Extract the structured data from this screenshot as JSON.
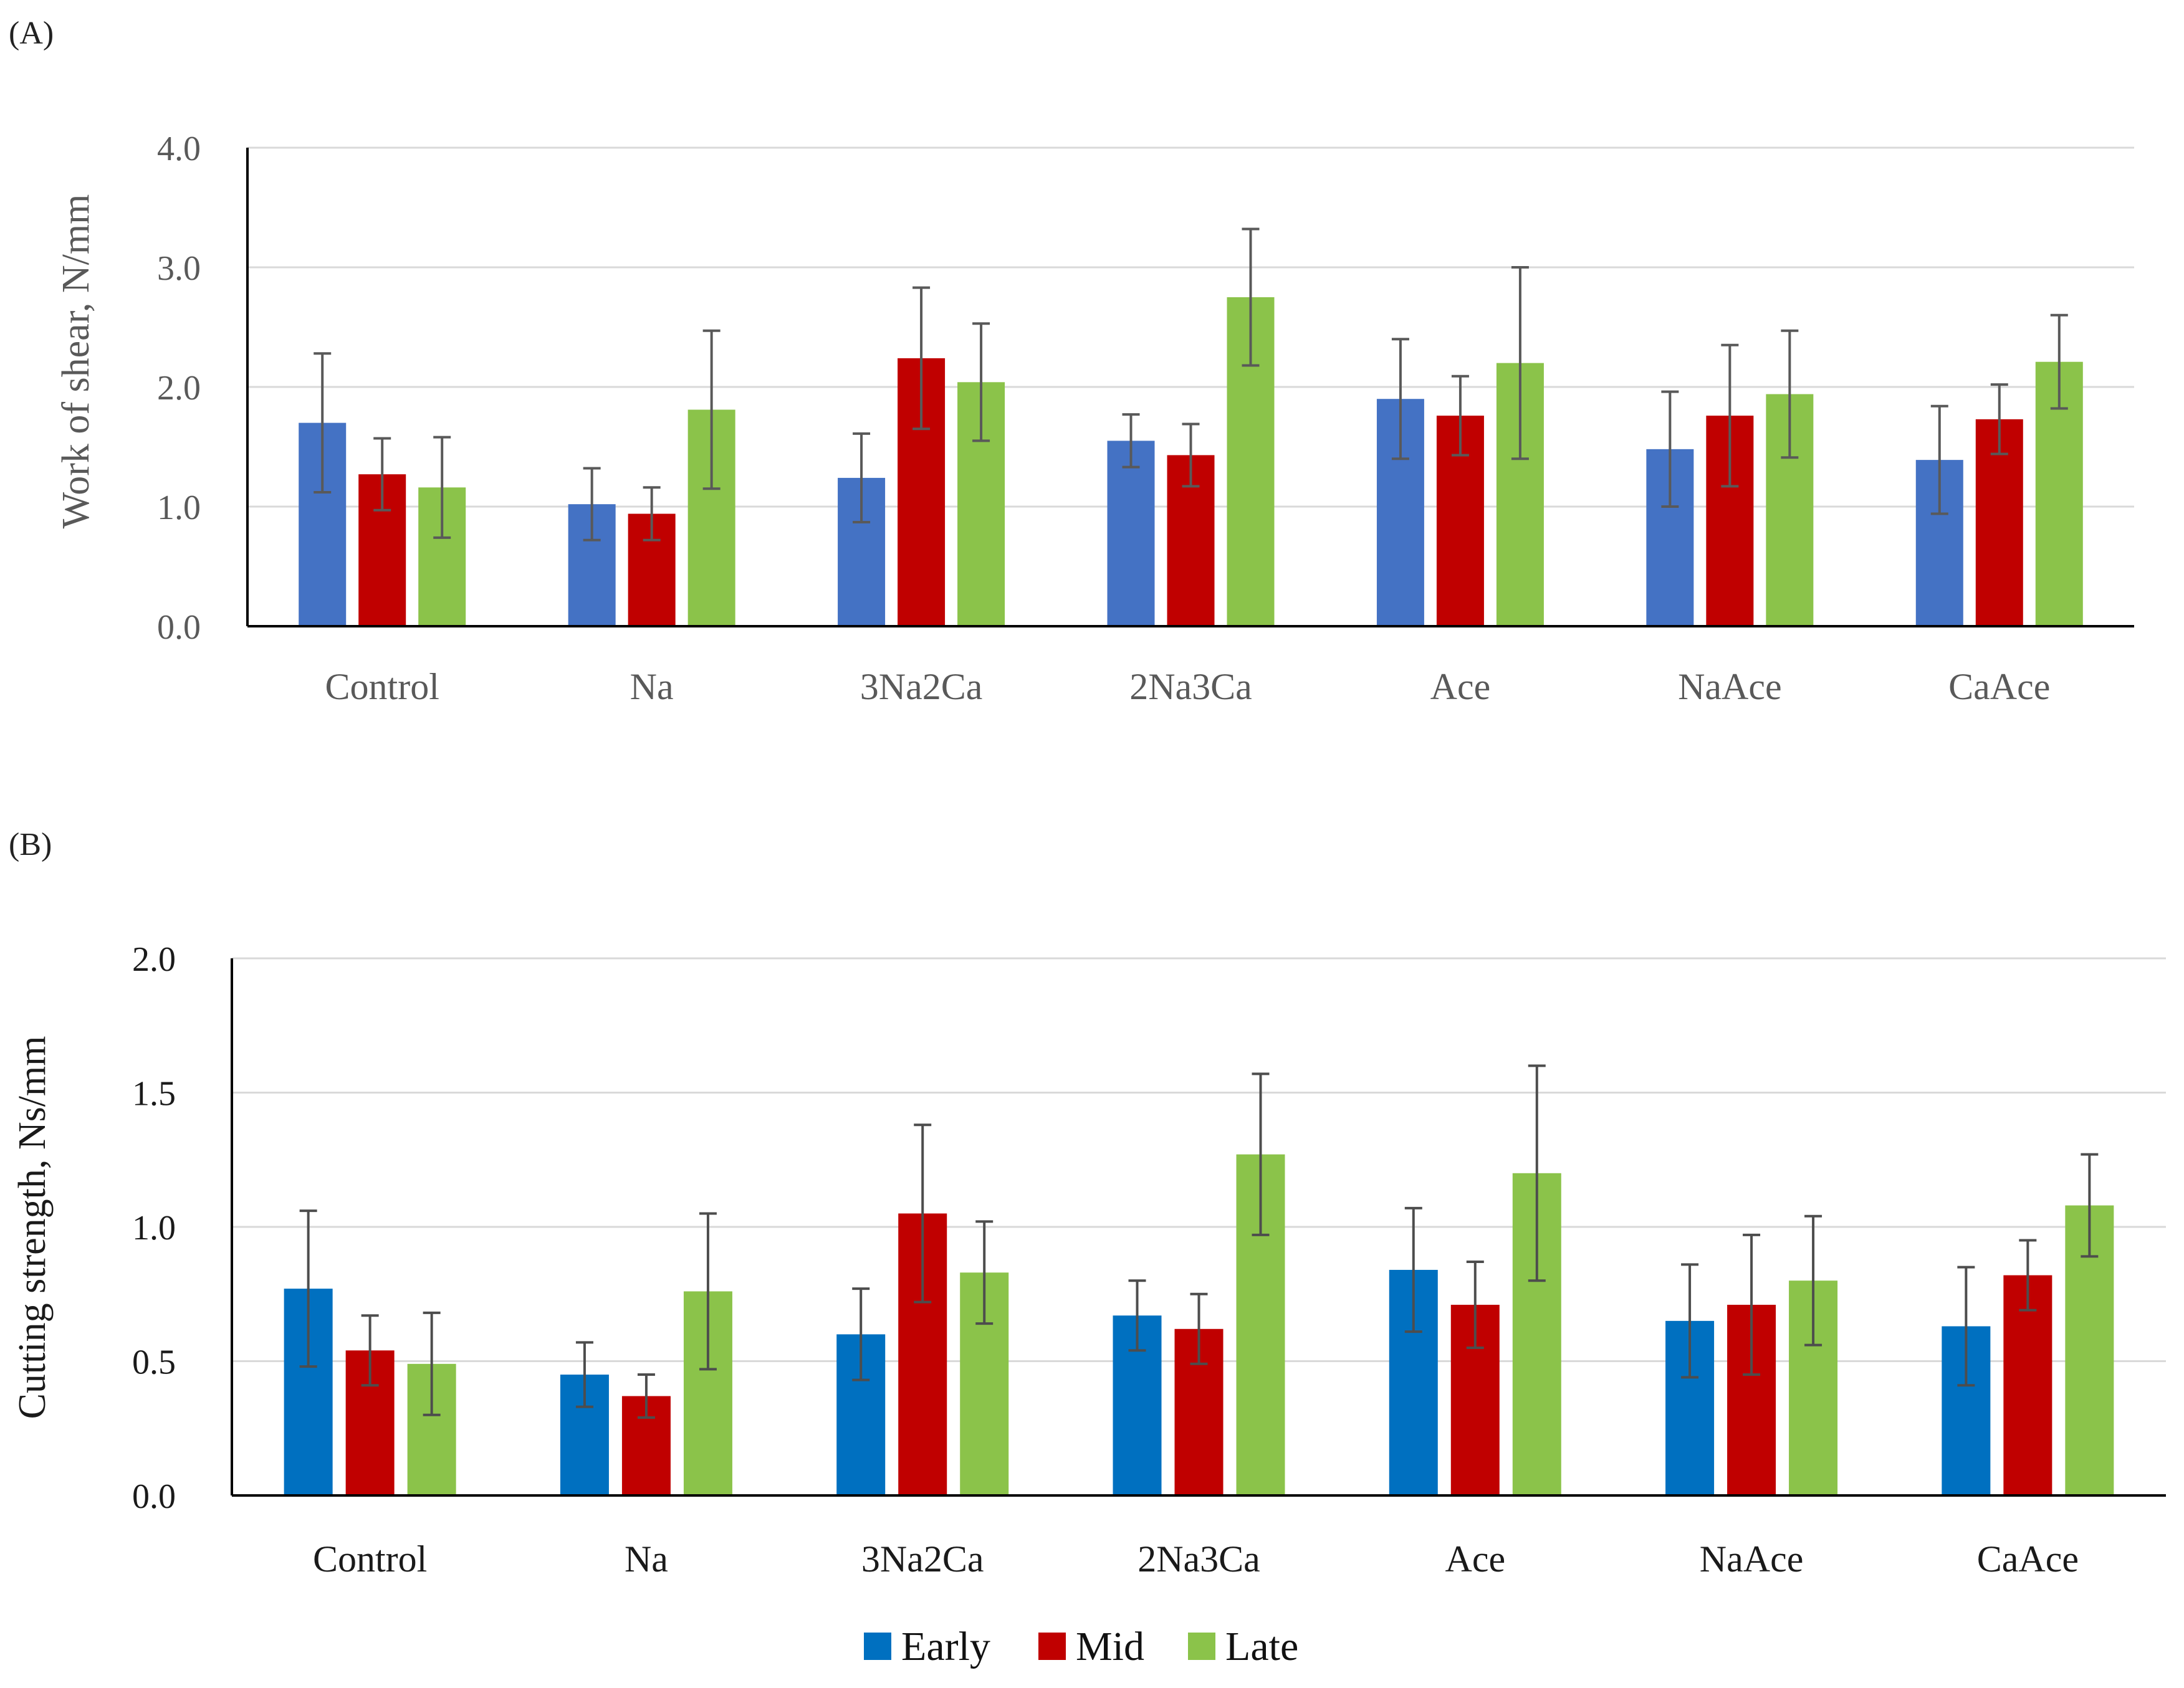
{
  "chart_data": [
    {
      "panel_label": "(A)",
      "type": "bar",
      "title": "",
      "xlabel": "",
      "ylabel": "Work of shear, N/mm",
      "ylim": [
        0,
        4
      ],
      "yticks": [
        "0.0",
        "1.0",
        "2.0",
        "3.0",
        "4.0"
      ],
      "categories": [
        "Control",
        "Na",
        "3Na2Ca",
        "2Na3Ca",
        "Ace",
        "NaAce",
        "CaAce"
      ],
      "series": [
        {
          "name": "Early",
          "color": "#4472C4",
          "values": [
            1.7,
            1.02,
            1.24,
            1.55,
            1.9,
            1.48,
            1.39
          ],
          "errors": [
            0.58,
            0.3,
            0.37,
            0.22,
            0.5,
            0.48,
            0.45
          ]
        },
        {
          "name": "Mid",
          "color": "#C00000",
          "values": [
            1.27,
            0.94,
            2.24,
            1.43,
            1.76,
            1.76,
            1.73
          ],
          "errors": [
            0.3,
            0.22,
            0.59,
            0.26,
            0.33,
            0.59,
            0.29
          ]
        },
        {
          "name": "Late",
          "color": "#8BC34A",
          "values": [
            1.16,
            1.81,
            2.04,
            2.75,
            2.2,
            1.94,
            2.21
          ],
          "errors": [
            0.42,
            0.66,
            0.49,
            0.57,
            0.8,
            0.53,
            0.39
          ]
        }
      ],
      "grid": true,
      "text_color": "#595959"
    },
    {
      "panel_label": "(B)",
      "type": "bar",
      "title": "",
      "xlabel": "",
      "ylabel": "Cutting strength, Ns/mm",
      "ylim": [
        0,
        2
      ],
      "yticks": [
        "0.0",
        "0.5",
        "1.0",
        "1.5",
        "2.0"
      ],
      "categories": [
        "Control",
        "Na",
        "3Na2Ca",
        "2Na3Ca",
        "Ace",
        "NaAce",
        "CaAce"
      ],
      "series": [
        {
          "name": "Early",
          "color": "#0070C0",
          "values": [
            0.77,
            0.45,
            0.6,
            0.67,
            0.84,
            0.65,
            0.63
          ],
          "errors": [
            0.29,
            0.12,
            0.17,
            0.13,
            0.23,
            0.21,
            0.22
          ]
        },
        {
          "name": "Mid",
          "color": "#C00000",
          "values": [
            0.54,
            0.37,
            1.05,
            0.62,
            0.71,
            0.71,
            0.82
          ],
          "errors": [
            0.13,
            0.08,
            0.33,
            0.13,
            0.16,
            0.26,
            0.13
          ]
        },
        {
          "name": "Late",
          "color": "#8BC34A",
          "values": [
            0.49,
            0.76,
            0.83,
            1.27,
            1.2,
            0.8,
            1.08
          ],
          "errors": [
            0.19,
            0.29,
            0.19,
            0.3,
            0.4,
            0.24,
            0.19
          ]
        }
      ],
      "grid": true,
      "text_color": "#1a1a1a"
    }
  ],
  "legend": {
    "placement": "bottom-center",
    "items": [
      {
        "label": "Early",
        "color": "#0070C0"
      },
      {
        "label": "Mid",
        "color": "#C00000"
      },
      {
        "label": "Late",
        "color": "#8BC34A"
      }
    ]
  }
}
